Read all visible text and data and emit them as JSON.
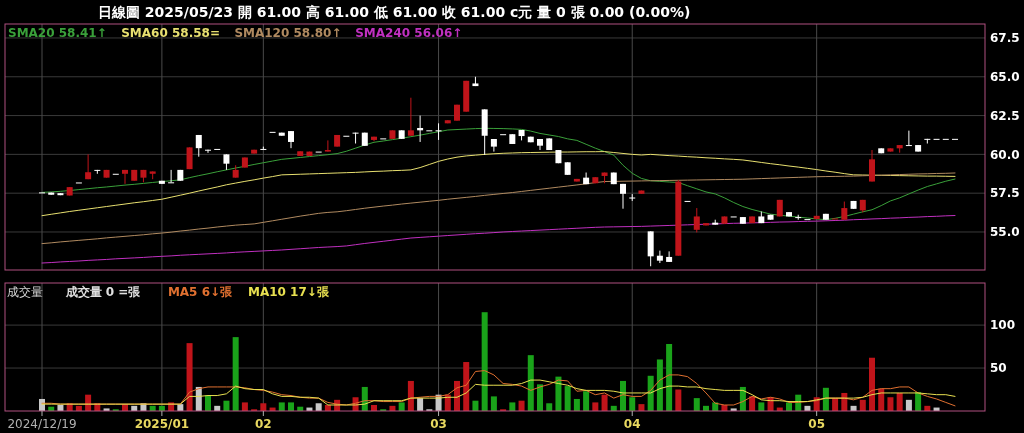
{
  "chart_data": [
    {
      "type": "candlestick",
      "title": "日線圖  2025/05/23  開 61.00  高 61.00  低 61.00  收 61.00  c元  量 0 張  0.00 (0.00%)",
      "categories": [
        "2024/12/19",
        null,
        null,
        null,
        null,
        null,
        null,
        null,
        null,
        null,
        null,
        null,
        null,
        "2025/01",
        null,
        null,
        null,
        null,
        null,
        null,
        null,
        null,
        null,
        null,
        "02",
        null,
        null,
        null,
        null,
        null,
        null,
        null,
        null,
        null,
        null,
        null,
        null,
        null,
        null,
        null,
        null,
        null,
        null,
        "03",
        null,
        null,
        null,
        null,
        null,
        null,
        null,
        null,
        null,
        null,
        null,
        null,
        null,
        null,
        null,
        null,
        null,
        null,
        null,
        null,
        "04",
        null,
        null,
        null,
        null,
        null,
        null,
        null,
        null,
        null,
        null,
        null,
        null,
        null,
        null,
        null,
        null,
        null,
        null,
        null,
        "05",
        null,
        null,
        null,
        null,
        null,
        null,
        null,
        null,
        null,
        null,
        null,
        null,
        null,
        null,
        null
      ],
      "ohlc": [
        [
          57.55,
          57.55,
          57.55,
          57.55
        ],
        [
          57.54,
          57.54,
          57.4,
          57.4
        ],
        [
          57.5,
          57.5,
          57.37,
          57.37
        ],
        [
          57.35,
          57.89,
          57.35,
          57.89
        ],
        [
          58.19,
          58.19,
          58.19,
          58.19
        ],
        [
          58.4,
          60.0,
          58.4,
          58.85
        ],
        [
          59.0,
          59.0,
          58.75,
          59.0
        ],
        [
          58.5,
          59.0,
          58.5,
          59.0
        ],
        [
          58.75,
          58.75,
          58.75,
          58.75
        ],
        [
          58.75,
          59.0,
          58.1,
          59.0
        ],
        [
          58.3,
          59.0,
          58.3,
          59.0
        ],
        [
          58.5,
          59.0,
          58.2,
          59.0
        ],
        [
          58.75,
          58.9,
          58.4,
          58.9
        ],
        [
          58.3,
          58.3,
          58.1,
          58.1
        ],
        [
          58.2,
          59.0,
          58.2,
          58.2
        ],
        [
          59.0,
          59.0,
          58.3,
          58.3
        ],
        [
          59.05,
          60.45,
          59.05,
          60.45
        ],
        [
          61.25,
          61.25,
          59.85,
          60.4
        ],
        [
          60.3,
          60.3,
          60.1,
          60.3
        ],
        [
          60.35,
          60.35,
          60.35,
          60.35
        ],
        [
          60.0,
          60.0,
          59.0,
          59.4
        ],
        [
          58.5,
          59.3,
          58.5,
          59.0
        ],
        [
          59.15,
          59.8,
          59.15,
          59.8
        ],
        [
          60.05,
          60.3,
          60.05,
          60.3
        ],
        [
          60.35,
          60.5,
          60.35,
          60.35
        ],
        [
          61.45,
          61.45,
          61.45,
          61.45
        ],
        [
          61.4,
          61.4,
          61.2,
          61.2
        ],
        [
          61.5,
          61.5,
          60.4,
          60.8
        ],
        [
          59.9,
          60.2,
          59.9,
          60.2
        ],
        [
          59.9,
          60.18,
          59.9,
          60.18
        ],
        [
          60.18,
          60.18,
          60.18,
          60.18
        ],
        [
          60.18,
          60.9,
          60.18,
          60.28
        ],
        [
          60.5,
          61.25,
          60.5,
          61.25
        ],
        [
          61.2,
          61.2,
          61.2,
          61.2
        ],
        [
          61.4,
          61.4,
          60.7,
          61.4
        ],
        [
          61.4,
          61.4,
          60.55,
          60.55
        ],
        [
          60.93,
          61.14,
          60.85,
          61.14
        ],
        [
          61.03,
          61.03,
          61.03,
          61.03
        ],
        [
          61.0,
          61.55,
          61.0,
          61.55
        ],
        [
          61.55,
          61.55,
          61.0,
          61.0
        ],
        [
          61.2,
          63.65,
          61.2,
          61.55
        ],
        [
          61.7,
          62.5,
          60.8,
          61.55
        ],
        [
          61.55,
          61.55,
          61.55,
          61.55
        ],
        [
          61.55,
          62.0,
          60.93,
          61.55
        ],
        [
          62.0,
          62.2,
          62.0,
          62.2
        ],
        [
          62.17,
          63.2,
          62.17,
          63.2
        ],
        [
          62.75,
          64.74,
          62.75,
          64.74
        ],
        [
          64.57,
          65.0,
          64.4,
          64.4
        ],
        [
          62.9,
          62.9,
          59.96,
          61.2
        ],
        [
          60.99,
          60.99,
          60.18,
          60.5
        ],
        [
          61.3,
          61.3,
          61.3,
          61.3
        ],
        [
          61.3,
          61.3,
          60.67,
          60.67
        ],
        [
          61.57,
          61.57,
          60.9,
          61.18
        ],
        [
          61.14,
          61.14,
          60.78,
          60.78
        ],
        [
          60.99,
          60.99,
          60.28,
          60.56
        ],
        [
          61.03,
          61.03,
          60.28,
          60.28
        ],
        [
          60.28,
          60.28,
          59.43,
          59.43
        ],
        [
          59.49,
          59.49,
          58.68,
          58.68
        ],
        [
          58.25,
          58.42,
          58.25,
          58.42
        ],
        [
          58.5,
          58.83,
          58.08,
          58.08
        ],
        [
          58.14,
          58.53,
          58.14,
          58.53
        ],
        [
          58.61,
          58.83,
          58.14,
          58.83
        ],
        [
          58.83,
          58.83,
          58.08,
          58.08
        ],
        [
          58.1,
          58.1,
          56.5,
          57.46
        ],
        [
          57.22,
          57.44,
          57.0,
          57.22
        ],
        [
          57.46,
          57.67,
          57.46,
          57.67
        ],
        [
          55.04,
          55.04,
          52.79,
          53.43
        ],
        [
          53.47,
          53.8,
          53.0,
          53.15
        ],
        [
          53.39,
          53.75,
          53.07,
          53.07
        ],
        [
          53.47,
          58.35,
          53.47,
          58.25
        ],
        [
          57.0,
          57.0,
          57.0,
          57.0
        ],
        [
          55.14,
          56.54,
          54.97,
          56.0
        ],
        [
          55.42,
          55.57,
          55.42,
          55.57
        ],
        [
          55.6,
          55.79,
          55.47,
          55.47
        ],
        [
          55.53,
          56.0,
          55.53,
          56.0
        ],
        [
          56.0,
          56.0,
          56.0,
          56.0
        ],
        [
          55.96,
          55.96,
          55.53,
          55.53
        ],
        [
          55.57,
          56.0,
          55.57,
          56.0
        ],
        [
          56.0,
          56.32,
          55.57,
          55.57
        ],
        [
          56.11,
          56.11,
          55.79,
          55.79
        ],
        [
          56.0,
          57.07,
          56.0,
          57.07
        ],
        [
          56.28,
          56.28,
          56.0,
          56.0
        ],
        [
          55.96,
          56.11,
          55.79,
          55.96
        ],
        [
          55.83,
          55.83,
          55.83,
          55.83
        ],
        [
          55.83,
          56.04,
          55.83,
          56.04
        ],
        [
          56.17,
          56.17,
          55.79,
          55.79
        ],
        [
          55.87,
          55.87,
          55.87,
          55.87
        ],
        [
          55.79,
          56.96,
          55.79,
          56.54
        ],
        [
          57.0,
          57.0,
          56.49,
          56.49
        ],
        [
          56.39,
          57.07,
          56.26,
          57.07
        ],
        [
          58.25,
          60.28,
          58.25,
          59.68
        ],
        [
          60.39,
          60.39,
          60.07,
          60.07
        ],
        [
          60.18,
          60.39,
          60.18,
          60.39
        ],
        [
          60.39,
          60.6,
          60.11,
          60.6
        ],
        [
          60.6,
          61.53,
          60.6,
          60.6
        ],
        [
          60.6,
          60.6,
          60.18,
          60.18
        ],
        [
          61.0,
          61.0,
          60.7,
          61.0
        ],
        [
          61.0,
          61.0,
          61.0,
          61.0
        ],
        [
          61.0,
          61.0,
          61.0,
          61.0
        ],
        [
          61.0,
          61.0,
          61.0,
          61.0
        ]
      ],
      "colors": [
        "#ffffff",
        "#ffffff",
        "#ffffff",
        "#c0141a",
        "#ffffff",
        "#c0141a",
        "#ffffff",
        "#c0141a",
        "#ffffff",
        "#c0141a",
        "#c0141a",
        "#c0141a",
        "#c0141a",
        "#ffffff",
        "#ffffff",
        "#ffffff",
        "#c0141a",
        "#ffffff",
        "#ffffff",
        "#ffffff",
        "#ffffff",
        "#c0141a",
        "#c0141a",
        "#c0141a",
        "#ffffff",
        "#ffffff",
        "#ffffff",
        "#ffffff",
        "#c0141a",
        "#c0141a",
        "#ffffff",
        "#c0141a",
        "#c0141a",
        "#ffffff",
        "#ffffff",
        "#ffffff",
        "#c0141a",
        "#ffffff",
        "#c0141a",
        "#ffffff",
        "#c0141a",
        "#ffffff",
        "#ffffff",
        "#ffffff",
        "#c0141a",
        "#c0141a",
        "#c0141a",
        "#ffffff",
        "#ffffff",
        "#ffffff",
        "#ffffff",
        "#ffffff",
        "#ffffff",
        "#ffffff",
        "#ffffff",
        "#ffffff",
        "#ffffff",
        "#ffffff",
        "#c0141a",
        "#ffffff",
        "#c0141a",
        "#c0141a",
        "#ffffff",
        "#ffffff",
        "#ffffff",
        "#c0141a",
        "#ffffff",
        "#ffffff",
        "#ffffff",
        "#c0141a",
        "#ffffff",
        "#c0141a",
        "#c0141a",
        "#ffffff",
        "#c0141a",
        "#ffffff",
        "#ffffff",
        "#c0141a",
        "#ffffff",
        "#ffffff",
        "#c0141a",
        "#ffffff",
        "#ffffff",
        "#ffffff",
        "#c0141a",
        "#ffffff",
        "#c0141a",
        "#c0141a",
        "#ffffff",
        "#c0141a",
        "#c0141a",
        "#ffffff",
        "#c0141a",
        "#c0141a",
        "#ffffff",
        "#ffffff",
        "#ffffff",
        "#ffffff",
        "#ffffff",
        "#ffffff"
      ],
      "series": [
        {
          "type": "line",
          "name": "SMA20 58.41↑",
          "color": "#3aa03a",
          "values": [
            57.55,
            57.58,
            57.62,
            57.67,
            57.73,
            57.79,
            57.85,
            57.9,
            57.96,
            58.02,
            58.07,
            58.13,
            58.19,
            58.25,
            58.3,
            58.36,
            58.5,
            58.63,
            58.75,
            58.88,
            59.0,
            59.12,
            59.23,
            59.35,
            59.46,
            59.57,
            59.68,
            59.74,
            59.8,
            59.86,
            59.92,
            59.98,
            60.05,
            60.2,
            60.4,
            60.6,
            60.78,
            60.86,
            60.95,
            61.04,
            61.14,
            61.24,
            61.35,
            61.46,
            61.57,
            61.6,
            61.63,
            61.66,
            61.68,
            61.67,
            61.66,
            61.64,
            61.61,
            61.5,
            61.35,
            61.25,
            61.15,
            61.0,
            60.9,
            60.65,
            60.4,
            60.18,
            59.95,
            59.3,
            58.78,
            58.45,
            58.3,
            58.26,
            58.22,
            58.19,
            57.98,
            57.78,
            57.58,
            57.45,
            57.2,
            56.9,
            56.64,
            56.45,
            56.3,
            56.15,
            56.08,
            56.02,
            55.96,
            55.9,
            55.84,
            55.79,
            55.88,
            56.0,
            56.15,
            56.3,
            56.43,
            56.7,
            57.0,
            57.2,
            57.45,
            57.7,
            57.93,
            58.1,
            58.27,
            58.41
          ]
        },
        {
          "type": "line",
          "name": "SMA60 58.58=",
          "color": "#e8e070",
          "values": [
            56.05,
            56.14,
            56.23,
            56.32,
            56.4,
            56.48,
            56.56,
            56.64,
            56.72,
            56.8,
            56.88,
            56.95,
            57.03,
            57.11,
            57.24,
            57.37,
            57.5,
            57.64,
            57.77,
            57.9,
            58.04,
            58.15,
            58.26,
            58.36,
            58.47,
            58.57,
            58.68,
            58.7,
            58.72,
            58.74,
            58.76,
            58.78,
            58.8,
            58.82,
            58.84,
            58.87,
            58.9,
            58.92,
            58.95,
            58.97,
            59.0,
            59.15,
            59.35,
            59.55,
            59.7,
            59.82,
            59.9,
            59.95,
            60.0,
            60.04,
            60.07,
            60.09,
            60.11,
            60.12,
            60.13,
            60.14,
            60.15,
            60.15,
            60.16,
            60.17,
            60.17,
            60.18,
            60.12,
            60.06,
            60.0,
            59.96,
            60.0,
            59.96,
            59.92,
            59.89,
            59.85,
            59.82,
            59.78,
            59.75,
            59.71,
            59.68,
            59.64,
            59.56,
            59.48,
            59.4,
            59.33,
            59.25,
            59.18,
            59.1,
            59.02,
            58.93,
            58.85,
            58.76,
            58.68,
            58.67,
            58.66,
            58.65,
            58.64,
            58.63,
            58.62,
            58.61,
            58.6,
            58.6,
            58.59,
            58.58
          ]
        },
        {
          "type": "line",
          "name": "SMA120 58.80↑",
          "color": "#b08a60",
          "values": [
            54.25,
            54.3,
            54.36,
            54.41,
            54.46,
            54.51,
            54.56,
            54.62,
            54.67,
            54.72,
            54.77,
            54.82,
            54.88,
            54.93,
            54.99,
            55.06,
            55.12,
            55.19,
            55.25,
            55.32,
            55.38,
            55.44,
            55.48,
            55.52,
            55.62,
            55.72,
            55.82,
            55.92,
            56.02,
            56.11,
            56.2,
            56.26,
            56.3,
            56.37,
            56.45,
            56.53,
            56.6,
            56.67,
            56.73,
            56.8,
            56.86,
            56.92,
            56.98,
            57.04,
            57.11,
            57.17,
            57.23,
            57.29,
            57.36,
            57.42,
            57.48,
            57.54,
            57.61,
            57.68,
            57.75,
            57.82,
            57.89,
            57.96,
            58.03,
            58.1,
            58.18,
            58.25,
            58.26,
            58.27,
            58.28,
            58.29,
            58.3,
            58.31,
            58.32,
            58.33,
            58.34,
            58.35,
            58.36,
            58.37,
            58.38,
            58.39,
            58.4,
            58.42,
            58.44,
            58.46,
            58.48,
            58.5,
            58.52,
            58.54,
            58.56,
            58.57,
            58.58,
            58.59,
            58.6,
            58.62,
            58.64,
            58.66,
            58.68,
            58.7,
            58.72,
            58.74,
            58.75,
            58.77,
            58.78,
            58.8
          ]
        },
        {
          "type": "line",
          "name": "SMA240 56.06↑",
          "color": "#c030c0",
          "values": [
            53.0,
            53.03,
            53.07,
            53.1,
            53.13,
            53.17,
            53.2,
            53.23,
            53.27,
            53.3,
            53.33,
            53.36,
            53.4,
            53.43,
            53.46,
            53.5,
            53.53,
            53.56,
            53.59,
            53.62,
            53.65,
            53.69,
            53.72,
            53.75,
            53.78,
            53.81,
            53.84,
            53.88,
            53.92,
            53.96,
            54.0,
            54.03,
            54.06,
            54.1,
            54.18,
            54.26,
            54.33,
            54.4,
            54.47,
            54.54,
            54.61,
            54.65,
            54.69,
            54.73,
            54.77,
            54.81,
            54.85,
            54.89,
            54.92,
            54.96,
            55.0,
            55.03,
            55.06,
            55.09,
            55.12,
            55.15,
            55.18,
            55.21,
            55.24,
            55.27,
            55.3,
            55.32,
            55.33,
            55.34,
            55.35,
            55.36,
            55.38,
            55.4,
            55.42,
            55.44,
            55.46,
            55.48,
            55.5,
            55.52,
            55.54,
            55.56,
            55.57,
            55.59,
            55.6,
            55.62,
            55.64,
            55.65,
            55.67,
            55.69,
            55.7,
            55.72,
            55.74,
            55.76,
            55.79,
            55.81,
            55.84,
            55.86,
            55.89,
            55.91,
            55.94,
            55.96,
            55.99,
            56.01,
            56.04,
            56.06
          ]
        }
      ],
      "ylim": [
        52.55,
        68.4
      ],
      "yticks": [
        {
          "value": 55,
          "label": "55.0"
        },
        {
          "value": 57.5,
          "label": "57.5"
        },
        {
          "value": 60,
          "label": "60.0"
        },
        {
          "value": 62.5,
          "label": "62.5"
        },
        {
          "value": 65,
          "label": "65.0"
        },
        {
          "value": 67.5,
          "label": "67.5"
        }
      ],
      "grid": true,
      "legend": "top left",
      "tick_labels": "y"
    },
    {
      "type": "bar",
      "title": "成交量",
      "categories": [
        "2024/12/19",
        null,
        null,
        null,
        null,
        null,
        null,
        null,
        null,
        null,
        null,
        null,
        null,
        "2025/01",
        null,
        null,
        null,
        null,
        null,
        null,
        null,
        null,
        null,
        null,
        "02",
        null,
        null,
        null,
        null,
        null,
        null,
        null,
        null,
        null,
        null,
        null,
        null,
        null,
        null,
        null,
        null,
        null,
        null,
        "03",
        null,
        null,
        null,
        null,
        null,
        null,
        null,
        null,
        null,
        null,
        null,
        null,
        null,
        null,
        null,
        null,
        null,
        null,
        null,
        null,
        "04",
        null,
        null,
        null,
        null,
        null,
        null,
        null,
        null,
        null,
        null,
        null,
        null,
        null,
        null,
        null,
        null,
        null,
        null,
        null,
        "05",
        null,
        null,
        null,
        null,
        null,
        null,
        null,
        null,
        null,
        null,
        null,
        null,
        null,
        null,
        null
      ],
      "series": [
        {
          "name": "成交量 0 =張",
          "colors": [
            "#c8c8c8",
            "#1aa31a",
            "#c8c8c8",
            "#c0141a",
            "#c0141a",
            "#c0141a",
            "#c0141a",
            "#c8c8c8",
            "#1aa31a",
            "#c0141a",
            "#c8c8c8",
            "#c8c8c8",
            "#1aa31a",
            "#1aa31a",
            "#c0141a",
            "#c8c8c8",
            "#c0141a",
            "#c8c8c8",
            "#1aa31a",
            "#c8c8c8",
            "#1aa31a",
            "#1aa31a",
            "#c0141a",
            "#c0141a",
            "#c0141a",
            "#c0141a",
            "#1aa31a",
            "#1aa31a",
            "#1aa31a",
            "#c8c8c8",
            "#c8c8c8",
            "#c0141a",
            "#c0141a",
            "#c8c8c8",
            "#c0141a",
            "#1aa31a",
            "#c0141a",
            "#1aa31a",
            "#c0141a",
            "#1aa31a",
            "#c0141a",
            "#c8c8c8",
            "#c8c8c8",
            "#c8c8c8",
            "#c0141a",
            "#c0141a",
            "#c0141a",
            "#1aa31a",
            "#1aa31a",
            "#1aa31a",
            "#c0141a",
            "#1aa31a",
            "#c0141a",
            "#1aa31a",
            "#1aa31a",
            "#1aa31a",
            "#1aa31a",
            "#1aa31a",
            "#1aa31a",
            "#1aa31a",
            "#c0141a",
            "#c0141a",
            "#1aa31a",
            "#1aa31a",
            "#1aa31a",
            "#c0141a",
            "#1aa31a",
            "#1aa31a",
            "#1aa31a",
            "#c0141a",
            "#c8c8c8",
            "#1aa31a",
            "#1aa31a",
            "#1aa31a",
            "#c0141a",
            "#c8c8c8",
            "#1aa31a",
            "#c0141a",
            "#1aa31a",
            "#c0141a",
            "#c0141a",
            "#1aa31a",
            "#1aa31a",
            "#c8c8c8",
            "#c0141a",
            "#1aa31a",
            "#c0141a",
            "#c0141a",
            "#c8c8c8",
            "#c0141a",
            "#c0141a",
            "#c0141a",
            "#c0141a",
            "#c0141a",
            "#c8c8c8",
            "#1aa31a",
            "#c0141a",
            "#c8c8c8",
            "#c8c8c8",
            "#c8c8c8"
          ],
          "values": [
            14,
            5,
            7,
            9,
            6,
            19,
            9,
            3,
            2,
            8,
            6,
            9,
            6,
            6,
            10,
            8,
            79,
            28,
            18,
            6,
            12,
            86,
            10,
            2,
            9,
            4,
            10,
            10,
            5,
            4,
            9,
            7,
            13,
            0,
            16,
            28,
            7,
            2,
            6,
            10,
            35,
            15,
            2,
            19,
            19,
            35,
            57,
            12,
            115,
            17,
            2,
            10,
            12,
            65,
            31,
            9,
            40,
            29,
            14,
            23,
            10,
            19,
            6,
            35,
            16,
            8,
            41,
            60,
            78,
            25,
            0,
            15,
            6,
            10,
            7,
            3,
            28,
            17,
            10,
            16,
            4,
            10,
            19,
            6,
            16,
            27,
            15,
            21,
            6,
            13,
            62,
            26,
            16,
            21,
            13,
            22,
            6,
            4,
            0,
            0
          ]
        },
        {
          "type": "line",
          "name": "MA5 6↓張",
          "color": "#e07030",
          "values": [
            9,
            9,
            8,
            8,
            8,
            8,
            8,
            8,
            8,
            8,
            8,
            8,
            8,
            8,
            8,
            8,
            22,
            26,
            28,
            28,
            28,
            28,
            27,
            25,
            24,
            22,
            19,
            18,
            16,
            15,
            15,
            10,
            8,
            7,
            9,
            12,
            12,
            11,
            11,
            11,
            15,
            16,
            17,
            17,
            19,
            27,
            30,
            46,
            47,
            42,
            32,
            31,
            29,
            24,
            28,
            31,
            36,
            35,
            23,
            24,
            19,
            21,
            15,
            19,
            17,
            17,
            24,
            36,
            42,
            42,
            40,
            32,
            21,
            9,
            7,
            7,
            11,
            17,
            14,
            16,
            14,
            10,
            10,
            11,
            12,
            15,
            15,
            15,
            13,
            16,
            24,
            26,
            26,
            28,
            28,
            21,
            17,
            14,
            10,
            6
          ]
        },
        {
          "type": "line",
          "name": "MA10 17↓張",
          "color": "#e8e050",
          "values": [
            8,
            8,
            8,
            8,
            8,
            8,
            8,
            8,
            8,
            8,
            8,
            8,
            8,
            8,
            8,
            8,
            17,
            17,
            18,
            18,
            20,
            29,
            26,
            25,
            25,
            20,
            17,
            17,
            16,
            16,
            15,
            7,
            7,
            7,
            7,
            8,
            12,
            12,
            12,
            12,
            15,
            15,
            15,
            15,
            16,
            16,
            21,
            31,
            30,
            30,
            30,
            30,
            32,
            36,
            36,
            34,
            32,
            30,
            26,
            24,
            24,
            24,
            23,
            21,
            21,
            21,
            21,
            26,
            29,
            29,
            28,
            28,
            26,
            25,
            24,
            24,
            24,
            19,
            13,
            12,
            12,
            11,
            11,
            11,
            13,
            15,
            15,
            15,
            15,
            16,
            19,
            21,
            21,
            21,
            21,
            21,
            20,
            19,
            19,
            17
          ]
        }
      ],
      "ylim": [
        0,
        149
      ],
      "yticks": [
        50,
        100
      ],
      "grid": true,
      "legend": "top left"
    }
  ]
}
